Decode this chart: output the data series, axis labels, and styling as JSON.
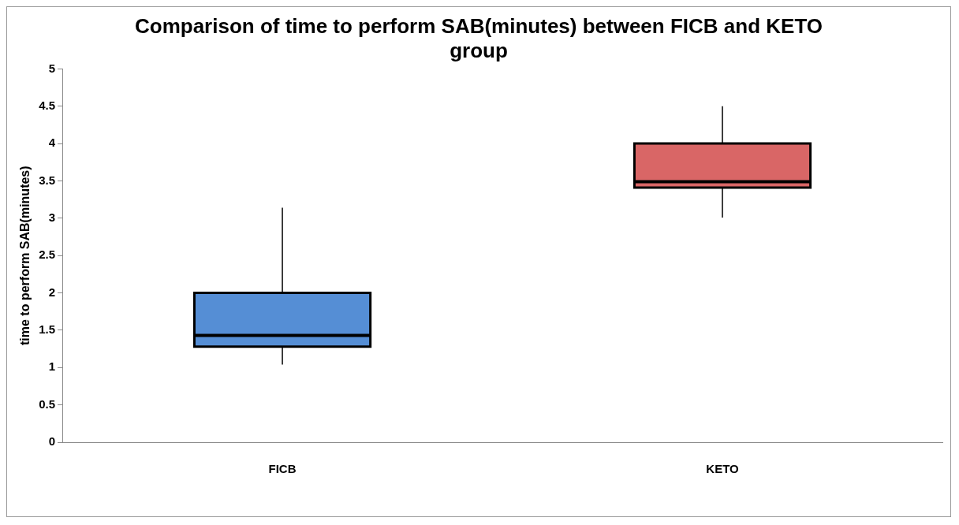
{
  "chart_data": {
    "type": "box",
    "title": "Comparison of time to perform SAB(minutes) between FICB and KETO group",
    "ylabel": "time to perform SAB(minutes)",
    "categories": [
      "FICB",
      "KETO"
    ],
    "boxes": [
      {
        "low": 1.04,
        "q1": 1.28,
        "median": 1.43,
        "q3": 2.0,
        "high": 3.14
      },
      {
        "low": 3.01,
        "q1": 3.41,
        "median": 3.49,
        "q3": 4.0,
        "high": 4.5
      }
    ],
    "colors": [
      "#558ed5",
      "#d96666"
    ],
    "ylim": [
      0,
      5
    ],
    "yticks": [
      0,
      0.5,
      1,
      1.5,
      2,
      2.5,
      3,
      3.5,
      4,
      4.5,
      5
    ],
    "grid": false,
    "legend": false
  }
}
